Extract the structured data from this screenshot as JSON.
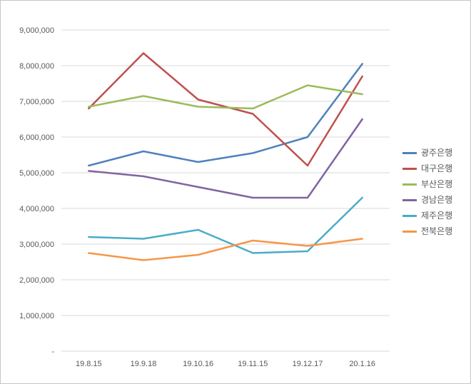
{
  "chart_data": {
    "type": "line",
    "x": [
      "19.8.15",
      "19.9.18",
      "19.10.16",
      "19.11.15",
      "19.12.17",
      "20.1.16"
    ],
    "series": [
      {
        "name": "광주은행",
        "color": "#4F81BD",
        "values": [
          5200000,
          5600000,
          5300000,
          5550000,
          6000000,
          8050000
        ]
      },
      {
        "name": "대구은행",
        "color": "#C0504D",
        "values": [
          6800000,
          8350000,
          7050000,
          6650000,
          5200000,
          7700000
        ]
      },
      {
        "name": "부산은행",
        "color": "#9BBB59",
        "values": [
          6850000,
          7150000,
          6850000,
          6800000,
          7450000,
          7200000
        ]
      },
      {
        "name": "경남은행",
        "color": "#8064A2",
        "values": [
          5050000,
          4900000,
          4600000,
          4300000,
          4300000,
          6500000
        ]
      },
      {
        "name": "제주은행",
        "color": "#4BACC6",
        "values": [
          3200000,
          3150000,
          3400000,
          2750000,
          2800000,
          4300000
        ]
      },
      {
        "name": "전북은행",
        "color": "#F79646",
        "values": [
          2750000,
          2550000,
          2700000,
          3100000,
          2950000,
          3150000
        ]
      }
    ],
    "title": "",
    "xlabel": "",
    "ylabel": "",
    "ylim": [
      0,
      9000000
    ],
    "ytick_step": 1000000,
    "zero_tick_label": "-",
    "grid": true,
    "legend_position": "right"
  },
  "colors": {
    "grid": "#d9d9d9",
    "axis_text": "#595959",
    "frame_border": "#c6c6c6",
    "background": "#ffffff"
  }
}
